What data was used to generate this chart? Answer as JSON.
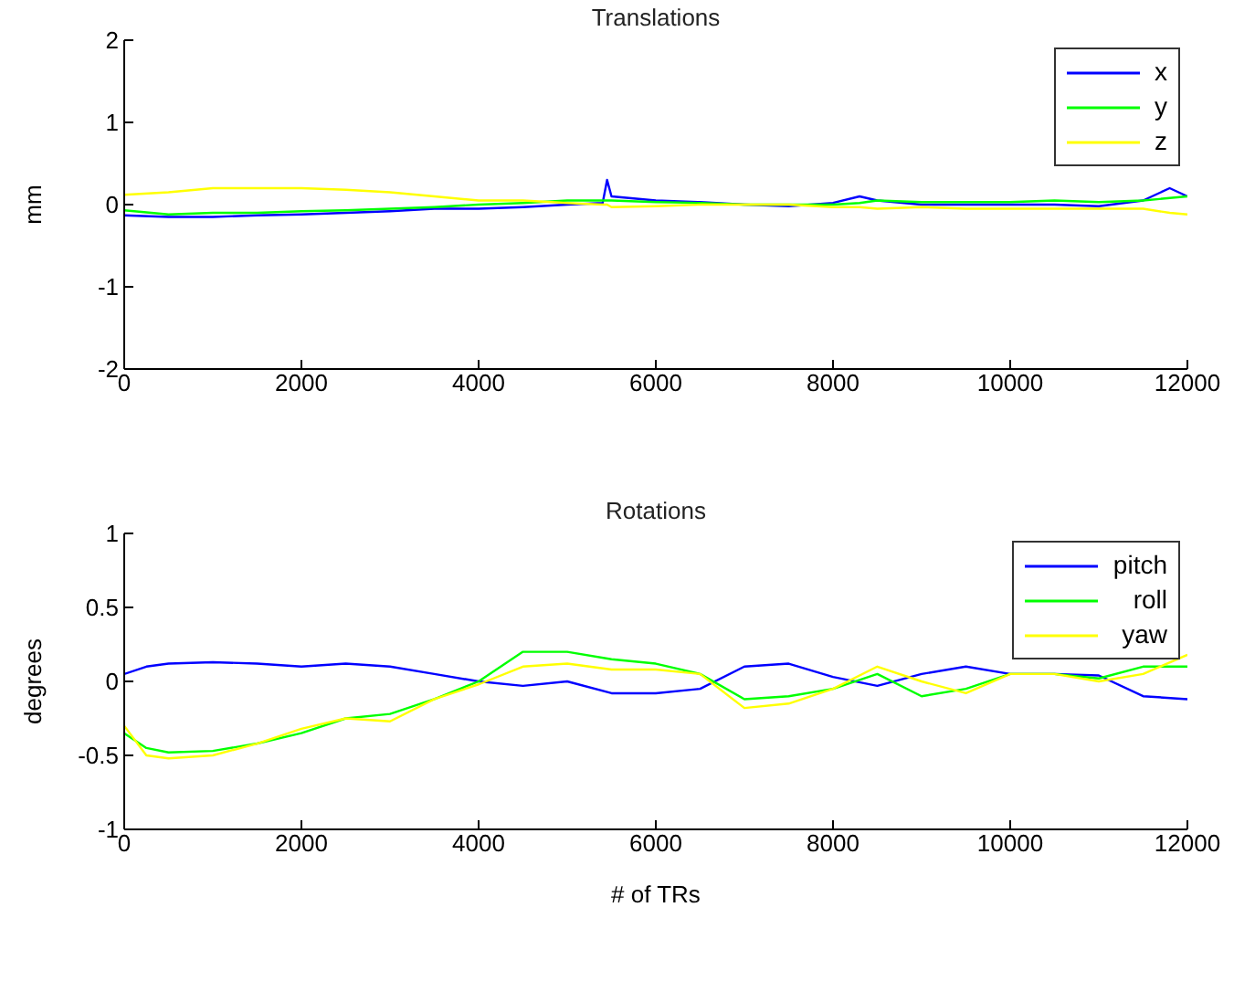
{
  "chart_data": [
    {
      "type": "line",
      "title": "Translations",
      "ylabel": "mm",
      "x": [
        0,
        500,
        1000,
        1500,
        2000,
        2500,
        3000,
        3500,
        4000,
        4500,
        5000,
        5400,
        5450,
        5500,
        6000,
        6500,
        7000,
        7500,
        8000,
        8300,
        8500,
        9000,
        9500,
        10000,
        10500,
        11000,
        11500,
        11800,
        12000
      ],
      "series": [
        {
          "name": "x",
          "color": "#0000ff",
          "values": [
            -0.13,
            -0.15,
            -0.15,
            -0.13,
            -0.12,
            -0.1,
            -0.08,
            -0.05,
            -0.05,
            -0.03,
            0.0,
            0.02,
            0.3,
            0.1,
            0.05,
            0.03,
            0.0,
            -0.02,
            0.02,
            0.1,
            0.05,
            0.0,
            0.0,
            0.0,
            0.0,
            -0.02,
            0.05,
            0.2,
            0.1
          ]
        },
        {
          "name": "y",
          "color": "#00ff00",
          "values": [
            -0.07,
            -0.12,
            -0.1,
            -0.1,
            -0.08,
            -0.07,
            -0.05,
            -0.03,
            0.0,
            0.02,
            0.05,
            0.05,
            0.05,
            0.05,
            0.03,
            0.02,
            0.0,
            0.0,
            0.0,
            0.02,
            0.05,
            0.03,
            0.03,
            0.03,
            0.05,
            0.03,
            0.05,
            0.08,
            0.1
          ]
        },
        {
          "name": "z",
          "color": "#ffff00",
          "values": [
            0.12,
            0.15,
            0.2,
            0.2,
            0.2,
            0.18,
            0.15,
            0.1,
            0.05,
            0.05,
            0.02,
            0.0,
            0.0,
            -0.03,
            -0.02,
            0.0,
            0.0,
            0.0,
            -0.03,
            -0.03,
            -0.05,
            -0.03,
            -0.05,
            -0.05,
            -0.05,
            -0.05,
            -0.05,
            -0.1,
            -0.12
          ]
        }
      ],
      "xlim": [
        0,
        12000
      ],
      "xticks": [
        0,
        2000,
        4000,
        6000,
        8000,
        10000,
        12000
      ],
      "ylim": [
        -2,
        2
      ],
      "yticks": [
        -2,
        -1,
        0,
        1,
        2
      ],
      "legend": "top right",
      "grid": false,
      "marker": "none",
      "line_style": "solid"
    },
    {
      "type": "line",
      "title": "Rotations",
      "xlabel": "# of TRs",
      "ylabel": "degrees",
      "x": [
        0,
        250,
        500,
        1000,
        1500,
        2000,
        2500,
        3000,
        3500,
        4000,
        4500,
        5000,
        5500,
        6000,
        6500,
        7000,
        7500,
        8000,
        8500,
        9000,
        9500,
        10000,
        10500,
        11000,
        11500,
        12000
      ],
      "series": [
        {
          "name": "pitch",
          "color": "#0000ff",
          "values": [
            0.05,
            0.1,
            0.12,
            0.13,
            0.12,
            0.1,
            0.12,
            0.1,
            0.05,
            0.0,
            -0.03,
            0.0,
            -0.08,
            -0.08,
            -0.05,
            0.1,
            0.12,
            0.03,
            -0.03,
            0.05,
            0.1,
            0.05,
            0.05,
            0.04,
            -0.1,
            -0.12
          ]
        },
        {
          "name": "roll",
          "color": "#00ff00",
          "values": [
            -0.35,
            -0.45,
            -0.48,
            -0.47,
            -0.42,
            -0.35,
            -0.25,
            -0.22,
            -0.12,
            0.0,
            0.2,
            0.2,
            0.15,
            0.12,
            0.05,
            -0.12,
            -0.1,
            -0.05,
            0.05,
            -0.1,
            -0.05,
            0.05,
            0.05,
            0.02,
            0.1,
            0.1
          ]
        },
        {
          "name": "yaw",
          "color": "#ffff00",
          "values": [
            -0.3,
            -0.5,
            -0.52,
            -0.5,
            -0.42,
            -0.32,
            -0.25,
            -0.27,
            -0.12,
            -0.02,
            0.1,
            0.12,
            0.08,
            0.08,
            0.05,
            -0.18,
            -0.15,
            -0.05,
            0.1,
            0.0,
            -0.08,
            0.05,
            0.05,
            0.0,
            0.05,
            0.18
          ]
        }
      ],
      "xlim": [
        0,
        12000
      ],
      "xticks": [
        0,
        2000,
        4000,
        6000,
        8000,
        10000,
        12000
      ],
      "ylim": [
        -1,
        1
      ],
      "yticks": [
        -1,
        -0.5,
        0,
        0.5,
        1
      ],
      "legend": "top right",
      "grid": false,
      "marker": "none",
      "line_style": "solid"
    }
  ]
}
